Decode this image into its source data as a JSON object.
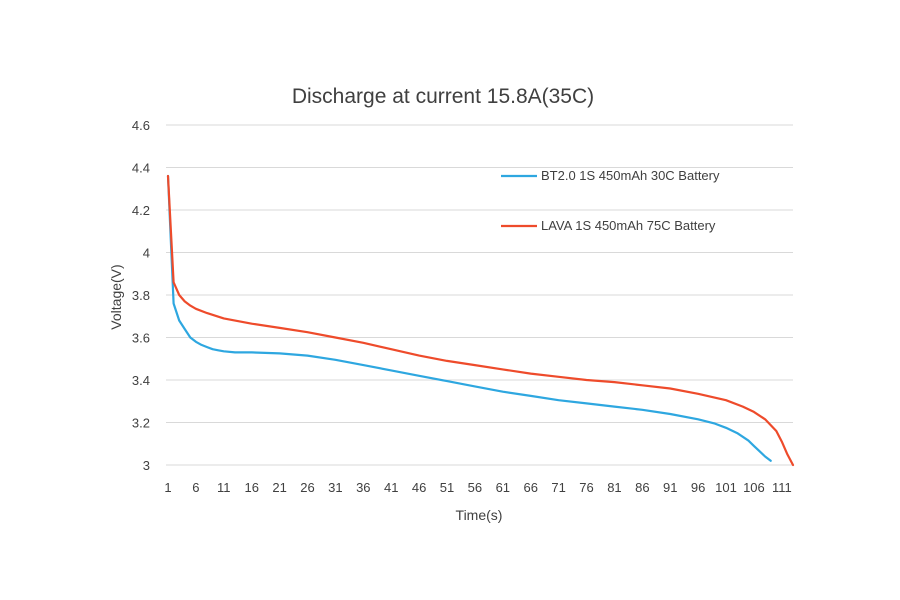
{
  "chart_data": {
    "type": "line",
    "title": "Discharge at current 15.8A(35C)",
    "xlabel": "Time(s)",
    "ylabel": "Voltage(V)",
    "xlim": [
      1,
      113
    ],
    "ylim": [
      3,
      4.6
    ],
    "x_ticks": [
      "1",
      "6",
      "11",
      "16",
      "21",
      "26",
      "31",
      "36",
      "41",
      "46",
      "51",
      "56",
      "61",
      "66",
      "71",
      "76",
      "81",
      "86",
      "91",
      "96",
      "101",
      "106",
      "111"
    ],
    "y_ticks": [
      "3",
      "3.2",
      "3.4",
      "3.6",
      "3.8",
      "4",
      "4.2",
      "4.4",
      "4.6"
    ],
    "grid": "horizontal",
    "legend_position": "top-right",
    "series": [
      {
        "name": "BT2.0 1S 450mAh 30C Battery",
        "color": "#2ea7e0",
        "x": [
          1,
          2,
          3,
          4,
          5,
          6,
          7,
          8,
          9,
          10,
          11,
          13,
          16,
          21,
          26,
          31,
          36,
          41,
          46,
          51,
          56,
          61,
          66,
          71,
          76,
          81,
          86,
          91,
          96,
          99,
          101,
          103,
          105,
          106,
          107,
          108,
          109
        ],
        "y": [
          4.36,
          3.76,
          3.68,
          3.64,
          3.6,
          3.58,
          3.565,
          3.555,
          3.545,
          3.54,
          3.535,
          3.53,
          3.53,
          3.525,
          3.515,
          3.495,
          3.47,
          3.445,
          3.42,
          3.395,
          3.37,
          3.345,
          3.325,
          3.305,
          3.29,
          3.275,
          3.26,
          3.24,
          3.215,
          3.195,
          3.175,
          3.15,
          3.115,
          3.09,
          3.065,
          3.04,
          3.02
        ]
      },
      {
        "name": "LAVA 1S 450mAh 75C Battery",
        "color": "#ee4b2b",
        "x": [
          1,
          2,
          3,
          4,
          5,
          6,
          8,
          11,
          16,
          21,
          26,
          31,
          36,
          41,
          46,
          51,
          56,
          61,
          66,
          71,
          76,
          81,
          86,
          91,
          96,
          101,
          104,
          106,
          108,
          110,
          111,
          112,
          113
        ],
        "y": [
          4.36,
          3.86,
          3.8,
          3.77,
          3.75,
          3.735,
          3.715,
          3.69,
          3.665,
          3.645,
          3.625,
          3.6,
          3.575,
          3.545,
          3.515,
          3.49,
          3.47,
          3.45,
          3.43,
          3.415,
          3.4,
          3.39,
          3.375,
          3.36,
          3.335,
          3.305,
          3.275,
          3.25,
          3.215,
          3.16,
          3.11,
          3.05,
          3.0
        ]
      }
    ]
  }
}
